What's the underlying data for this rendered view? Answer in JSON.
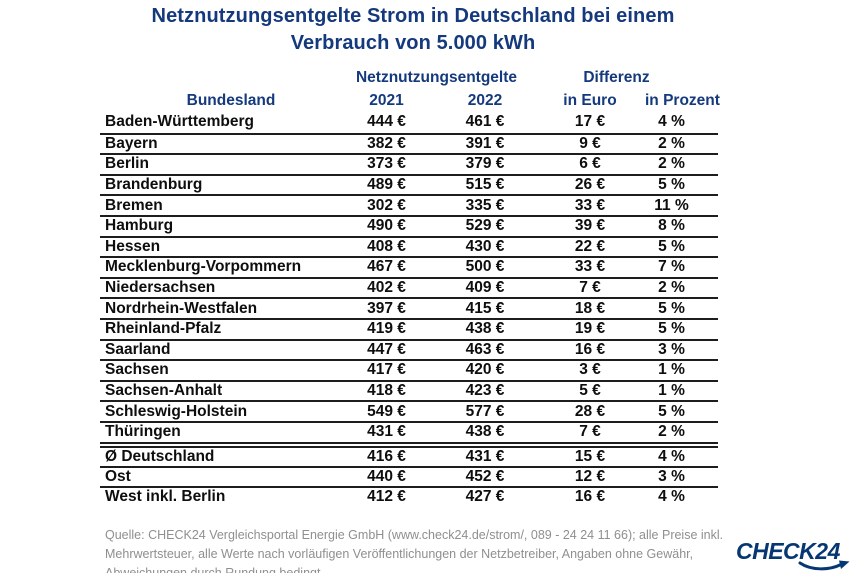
{
  "title": {
    "line1": "Netznutzungsentgelte Strom in Deutschland bei einem",
    "line2": "Verbrauch von 5.000 kWh"
  },
  "table": {
    "group_headers": {
      "fees": "Netznutzungsentgelte",
      "diff": "Differenz"
    },
    "column_headers": {
      "state": "Bundesland",
      "y2021": "2021",
      "y2022": "2022",
      "diff_euro": "in Euro",
      "diff_percent": "in Prozent"
    }
  },
  "chart_data": {
    "type": "table",
    "title": "Netznutzungsentgelte Strom in Deutschland bei einem Verbrauch von 5.000 kWh",
    "columns": [
      "Bundesland",
      "Netznutzungsentgelte 2021",
      "Netznutzungsentgelte 2022",
      "Differenz in Euro",
      "Differenz in Prozent"
    ],
    "units": {
      "fees": "€",
      "percent": "%"
    },
    "rows": [
      [
        "Baden-Württemberg",
        444,
        461,
        17,
        4
      ],
      [
        "Bayern",
        382,
        391,
        9,
        2
      ],
      [
        "Berlin",
        373,
        379,
        6,
        2
      ],
      [
        "Brandenburg",
        489,
        515,
        26,
        5
      ],
      [
        "Bremen",
        302,
        335,
        33,
        11
      ],
      [
        "Hamburg",
        490,
        529,
        39,
        8
      ],
      [
        "Hessen",
        408,
        430,
        22,
        5
      ],
      [
        "Mecklenburg-Vorpommern",
        467,
        500,
        33,
        7
      ],
      [
        "Niedersachsen",
        402,
        409,
        7,
        2
      ],
      [
        "Nordrhein-Westfalen",
        397,
        415,
        18,
        5
      ],
      [
        "Rheinland-Pfalz",
        419,
        438,
        19,
        5
      ],
      [
        "Saarland",
        447,
        463,
        16,
        3
      ],
      [
        "Sachsen",
        417,
        420,
        3,
        1
      ],
      [
        "Sachsen-Anhalt",
        418,
        423,
        5,
        1
      ],
      [
        "Schleswig-Holstein",
        549,
        577,
        28,
        5
      ],
      [
        "Thüringen",
        431,
        438,
        7,
        2
      ]
    ],
    "summary_rows": [
      [
        "Ø Deutschland",
        416,
        431,
        15,
        4
      ],
      [
        "Ost",
        440,
        452,
        12,
        3
      ],
      [
        "West inkl. Berlin",
        412,
        427,
        16,
        4
      ]
    ]
  },
  "footer": {
    "source_lines": [
      "Quelle: CHECK24 Vergleichsportal Energie GmbH (www.check24.de/strom/, 089 - 24 24 11 66); alle Preise inkl.",
      "Mehrwertsteuer, alle Werte nach vorläufigen Veröffentlichungen der Netzbetreiber, Angaben ohne Gewähr,",
      "Abweichungen durch Rundung bedingt"
    ]
  },
  "logo": {
    "text": "CHECK24"
  },
  "colors": {
    "accent_blue": "#15397d",
    "logo_navy": "#063773",
    "rule_line": "#1d1d1d",
    "footer_gray": "#8f8f8f",
    "background": "#ffffff"
  }
}
